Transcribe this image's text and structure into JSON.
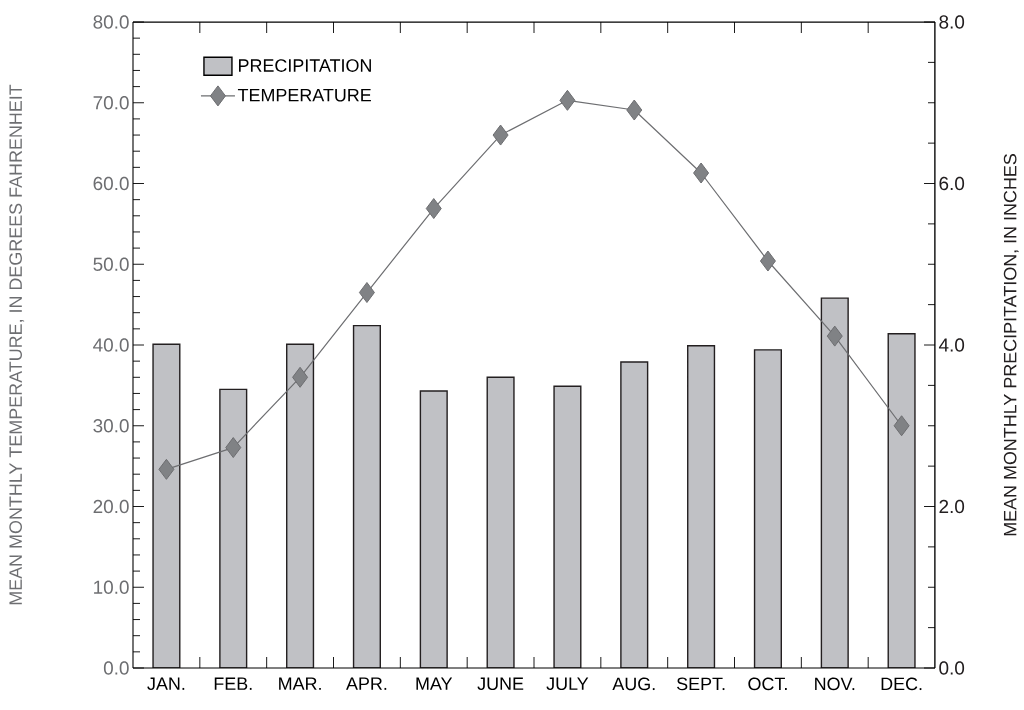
{
  "chart_data": {
    "type": "bar",
    "ylabel": "MEAN MONTHLY TEMPERATURE, IN DEGREES FAHRENHEIT",
    "y2label": "MEAN MONTHLY PRECIPITATION, IN INCHES",
    "categories": [
      "JAN.",
      "FEB.",
      "MAR.",
      "APR.",
      "MAY",
      "JUNE",
      "JULY",
      "AUG.",
      "SEPT.",
      "OCT.",
      "NOV.",
      "DEC."
    ],
    "series": [
      {
        "name": "PRECIPITATION",
        "axis": "y2",
        "color": "#c0c1c5",
        "values": [
          4.01,
          3.45,
          4.01,
          4.24,
          3.43,
          3.6,
          3.49,
          3.79,
          3.99,
          3.94,
          4.58,
          4.14
        ]
      },
      {
        "name": "TEMPERATURE",
        "type": "line",
        "color": "#808285",
        "values": [
          24.6,
          27.3,
          36.0,
          46.5,
          56.9,
          66.0,
          70.3,
          69.1,
          61.3,
          50.4,
          41.1,
          30.0
        ]
      }
    ],
    "marker": "diamond",
    "line_style": "solid",
    "legend": "top left",
    "ylim": [
      0,
      80
    ],
    "yticks": [
      {
        "value": 0,
        "label": "0.0"
      },
      {
        "value": 2,
        "label": null
      },
      {
        "value": 4,
        "label": null
      },
      {
        "value": 6,
        "label": null
      },
      {
        "value": 8,
        "label": null
      },
      {
        "value": 10,
        "label": "10.0"
      },
      {
        "value": 12,
        "label": null
      },
      {
        "value": 14,
        "label": null
      },
      {
        "value": 16,
        "label": null
      },
      {
        "value": 18,
        "label": null
      },
      {
        "value": 20,
        "label": "20.0"
      },
      {
        "value": 22,
        "label": null
      },
      {
        "value": 24,
        "label": null
      },
      {
        "value": 26,
        "label": null
      },
      {
        "value": 28,
        "label": null
      },
      {
        "value": 30,
        "label": "30.0"
      },
      {
        "value": 32,
        "label": null
      },
      {
        "value": 34,
        "label": null
      },
      {
        "value": 36,
        "label": null
      },
      {
        "value": 38,
        "label": null
      },
      {
        "value": 40,
        "label": "40.0"
      },
      {
        "value": 42,
        "label": null
      },
      {
        "value": 44,
        "label": null
      },
      {
        "value": 46,
        "label": null
      },
      {
        "value": 48,
        "label": null
      },
      {
        "value": 50,
        "label": "50.0"
      },
      {
        "value": 52,
        "label": null
      },
      {
        "value": 54,
        "label": null
      },
      {
        "value": 56,
        "label": null
      },
      {
        "value": 58,
        "label": null
      },
      {
        "value": 60,
        "label": "60.0"
      },
      {
        "value": 62,
        "label": null
      },
      {
        "value": 64,
        "label": null
      },
      {
        "value": 66,
        "label": null
      },
      {
        "value": 68,
        "label": null
      },
      {
        "value": 70,
        "label": "70.0"
      },
      {
        "value": 72,
        "label": null
      },
      {
        "value": 74,
        "label": null
      },
      {
        "value": 76,
        "label": null
      },
      {
        "value": 78,
        "label": null
      },
      {
        "value": 80,
        "label": "80.0"
      }
    ],
    "y2lim": [
      0,
      8
    ],
    "y2ticks": [
      {
        "value": 0,
        "label": "0.0"
      },
      {
        "value": 0.5,
        "label": null
      },
      {
        "value": 1,
        "label": null
      },
      {
        "value": 1.5,
        "label": null
      },
      {
        "value": 2,
        "label": "2.0"
      },
      {
        "value": 2.5,
        "label": null
      },
      {
        "value": 3,
        "label": null
      },
      {
        "value": 3.5,
        "label": null
      },
      {
        "value": 4,
        "label": "4.0"
      },
      {
        "value": 4.5,
        "label": null
      },
      {
        "value": 5,
        "label": null
      },
      {
        "value": 5.5,
        "label": null
      },
      {
        "value": 6,
        "label": "6.0"
      },
      {
        "value": 6.5,
        "label": null
      },
      {
        "value": 7,
        "label": null
      },
      {
        "value": 7.5,
        "label": null
      },
      {
        "value": 8,
        "label": "8.0"
      }
    ]
  }
}
